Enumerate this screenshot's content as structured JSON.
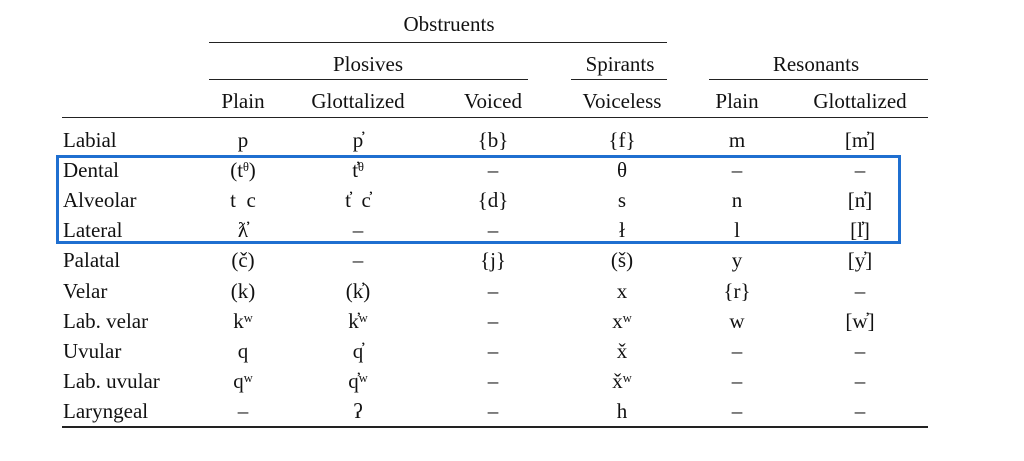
{
  "headers": {
    "obstruents": "Obstruents",
    "plosives": "Plosives",
    "spirants": "Spirants",
    "resonants": "Resonants",
    "columns": [
      "Plain",
      "Glottalized",
      "Voiced",
      "Voiceless",
      "Plain",
      "Glottalized"
    ]
  },
  "highlight_color": "#1f6fd0",
  "rows": [
    {
      "label": "Labial",
      "cells": [
        "p",
        "p̓",
        "{b}",
        "{f}",
        "m",
        "[m̓]"
      ]
    },
    {
      "label": "Dental",
      "cells": [
        "(tᶿ)",
        "t̓ᶿ",
        "–",
        "θ",
        "–",
        "–"
      ]
    },
    {
      "label": "Alveolar",
      "cells": [
        "t  c",
        "t̓  c̓",
        "{d}",
        "s",
        "n",
        "[n̓]"
      ]
    },
    {
      "label": "Lateral",
      "cells": [
        "ƛ̓",
        "–",
        "–",
        "ł",
        "l",
        "[l̓]"
      ]
    },
    {
      "label": "Palatal",
      "cells": [
        "(č)",
        "–",
        "{j}",
        "(š)",
        "y",
        "[y̓]"
      ]
    },
    {
      "label": "Velar",
      "cells": [
        "(k)",
        "(k̓)",
        "–",
        "x",
        "{r}",
        "–"
      ]
    },
    {
      "label": "Lab. velar",
      "cells": [
        "kʷ",
        "k̓ʷ",
        "–",
        "xʷ",
        "w",
        "[w̓]"
      ]
    },
    {
      "label": "Uvular",
      "cells": [
        "q",
        "q̓",
        "–",
        "x̌",
        "–",
        "–"
      ]
    },
    {
      "label": "Lab. uvular",
      "cells": [
        "qʷ",
        "q̓ʷ",
        "–",
        "x̌ʷ",
        "–",
        "–"
      ]
    },
    {
      "label": "Laryngeal",
      "cells": [
        "–",
        "ʔ",
        "–",
        "h",
        "–",
        "–"
      ]
    }
  ]
}
